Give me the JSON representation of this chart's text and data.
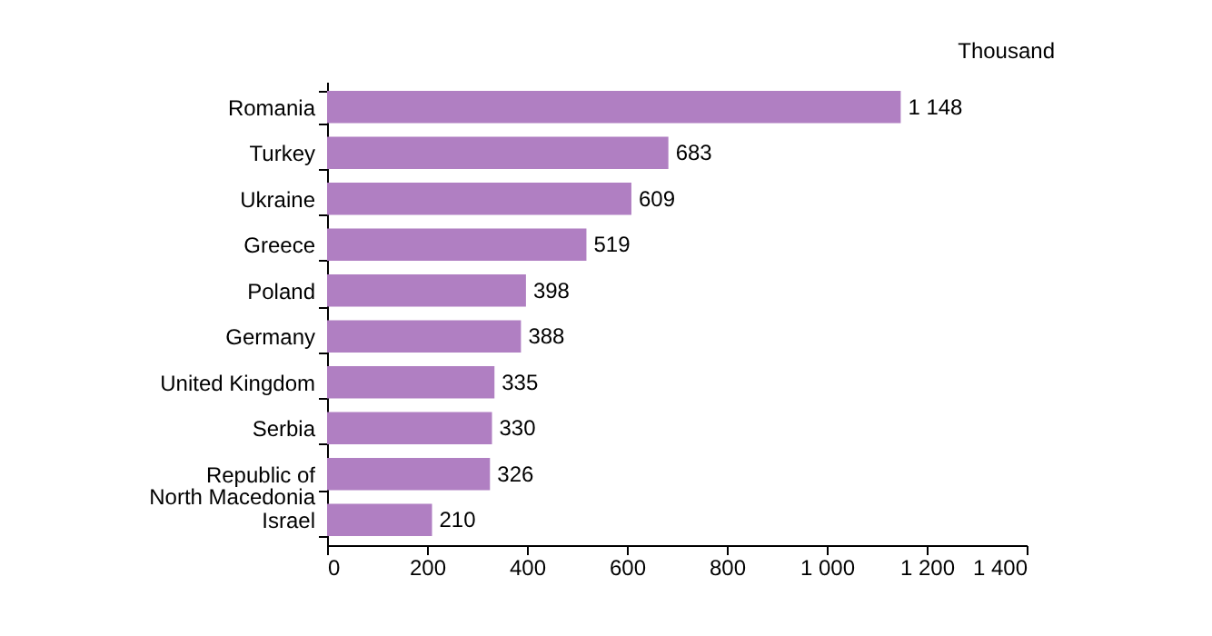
{
  "chart_data": {
    "type": "bar",
    "orientation": "horizontal",
    "annotations": [
      "Thousand"
    ],
    "categories": [
      "Romania",
      "Turkey",
      "Ukraine",
      "Greece",
      "Poland",
      "Germany",
      "United Kingdom",
      "Serbia",
      "Republic of\nNorth Macedonia",
      "Israel"
    ],
    "values": [
      1148,
      683,
      609,
      519,
      398,
      388,
      335,
      330,
      326,
      210
    ],
    "value_labels": [
      "1 148",
      "683",
      "609",
      "519",
      "398",
      "388",
      "335",
      "330",
      "326",
      "210"
    ],
    "color": "#b07fc2",
    "xlim": [
      0,
      1400
    ],
    "xticks": [
      0,
      200,
      400,
      600,
      800,
      {
        "value": 1000,
        "label": "1 000"
      },
      {
        "value": 1200,
        "label": "1 200"
      },
      {
        "value": 1400,
        "label": "1 400"
      }
    ],
    "grid": false
  }
}
